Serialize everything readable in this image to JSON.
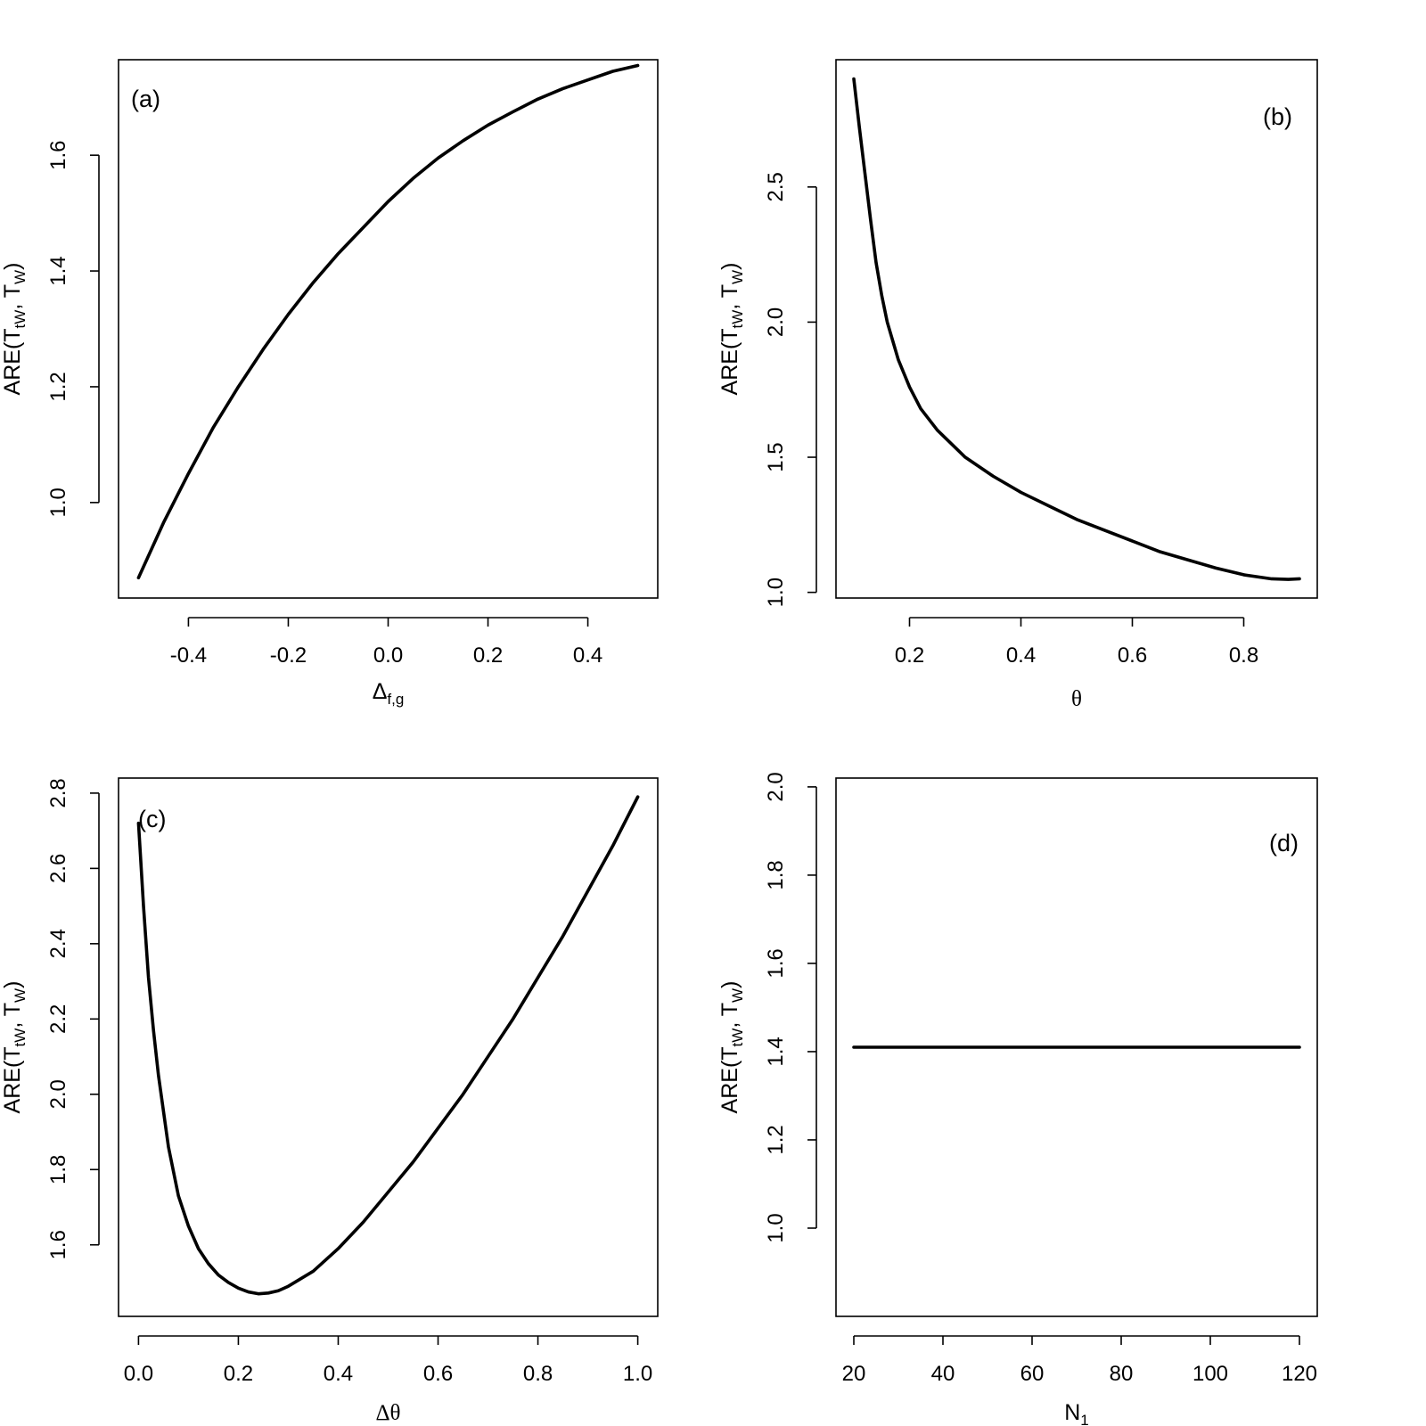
{
  "chart_data": [
    {
      "type": "line",
      "panel_label": "(a)",
      "xlabel": "Δ",
      "xlabel_sub": "f,g",
      "ylabel_parts": [
        "ARE(T",
        "tW",
        ", T",
        "W",
        ")"
      ],
      "xlim": [
        -0.54,
        0.54
      ],
      "ylim": [
        0.835,
        1.765
      ],
      "xticks": [
        -0.4,
        -0.2,
        0.0,
        0.2,
        0.4
      ],
      "xtick_labels": [
        "-0.4",
        "-0.2",
        "0.0",
        "0.2",
        "0.4"
      ],
      "yticks": [
        1.0,
        1.2,
        1.4,
        1.6
      ],
      "ytick_labels": [
        "1.0",
        "1.2",
        "1.4",
        "1.6"
      ],
      "grid": false,
      "series": [
        {
          "x": [
            -0.5,
            -0.45,
            -0.4,
            -0.35,
            -0.3,
            -0.25,
            -0.2,
            -0.15,
            -0.1,
            -0.05,
            0.0,
            0.05,
            0.1,
            0.15,
            0.2,
            0.25,
            0.3,
            0.35,
            0.4,
            0.45,
            0.5
          ],
          "y": [
            0.87,
            0.965,
            1.05,
            1.13,
            1.2,
            1.265,
            1.325,
            1.38,
            1.43,
            1.475,
            1.52,
            1.56,
            1.595,
            1.625,
            1.652,
            1.675,
            1.697,
            1.715,
            1.73,
            1.745,
            1.755
          ]
        }
      ]
    },
    {
      "type": "line",
      "panel_label": "(b)",
      "xlabel": "θ",
      "ylabel_parts": [
        "ARE(T",
        "tW",
        ", T",
        "W",
        ")"
      ],
      "xlim": [
        0.068,
        0.932
      ],
      "ylim": [
        0.979,
        2.971
      ],
      "xticks": [
        0.2,
        0.4,
        0.6,
        0.8
      ],
      "xtick_labels": [
        "0.2",
        "0.4",
        "0.6",
        "0.8"
      ],
      "yticks": [
        1.0,
        1.5,
        2.0,
        2.5
      ],
      "ytick_labels": [
        "1.0",
        "1.5",
        "2.0",
        "2.5"
      ],
      "grid": false,
      "series": [
        {
          "x": [
            0.1,
            0.11,
            0.12,
            0.13,
            0.14,
            0.15,
            0.16,
            0.18,
            0.2,
            0.22,
            0.25,
            0.3,
            0.35,
            0.4,
            0.45,
            0.5,
            0.55,
            0.6,
            0.65,
            0.7,
            0.75,
            0.8,
            0.85,
            0.88,
            0.9
          ],
          "y": [
            2.9,
            2.72,
            2.55,
            2.38,
            2.22,
            2.1,
            2.0,
            1.86,
            1.76,
            1.68,
            1.6,
            1.5,
            1.43,
            1.37,
            1.32,
            1.27,
            1.23,
            1.19,
            1.15,
            1.12,
            1.09,
            1.065,
            1.05,
            1.048,
            1.05
          ]
        }
      ]
    },
    {
      "type": "line",
      "panel_label": "(c)",
      "xlabel": "Δθ",
      "ylabel_parts": [
        "ARE(T",
        "tW",
        ", T",
        "W",
        ")"
      ],
      "xlim": [
        -0.04,
        1.04
      ],
      "ylim": [
        1.41,
        2.84
      ],
      "xticks": [
        0.0,
        0.2,
        0.4,
        0.6,
        0.8,
        1.0
      ],
      "xtick_labels": [
        "0.0",
        "0.2",
        "0.4",
        "0.6",
        "0.8",
        "1.0"
      ],
      "yticks": [
        1.6,
        1.8,
        2.0,
        2.2,
        2.4,
        2.6,
        2.8
      ],
      "ytick_labels": [
        "1.6",
        "1.8",
        "2.0",
        "2.2",
        "2.4",
        "2.6",
        "2.8"
      ],
      "grid": false,
      "series": [
        {
          "x": [
            0.0,
            0.01,
            0.02,
            0.03,
            0.04,
            0.06,
            0.08,
            0.1,
            0.12,
            0.14,
            0.16,
            0.18,
            0.2,
            0.22,
            0.24,
            0.26,
            0.28,
            0.3,
            0.35,
            0.4,
            0.45,
            0.5,
            0.55,
            0.6,
            0.65,
            0.7,
            0.75,
            0.8,
            0.85,
            0.9,
            0.95,
            1.0
          ],
          "y": [
            2.72,
            2.5,
            2.31,
            2.17,
            2.05,
            1.86,
            1.73,
            1.65,
            1.59,
            1.55,
            1.52,
            1.5,
            1.485,
            1.475,
            1.47,
            1.472,
            1.478,
            1.49,
            1.53,
            1.59,
            1.66,
            1.74,
            1.82,
            1.91,
            2.0,
            2.1,
            2.2,
            2.31,
            2.42,
            2.54,
            2.66,
            2.79
          ]
        }
      ]
    },
    {
      "type": "line",
      "panel_label": "(d)",
      "xlabel": "N",
      "xlabel_sub": "1",
      "ylabel_parts": [
        "ARE(T",
        "tW",
        ", T",
        "W",
        ")"
      ],
      "xlim": [
        16,
        124
      ],
      "ylim": [
        0.8,
        2.02
      ],
      "xticks": [
        20,
        40,
        60,
        80,
        100,
        120
      ],
      "xtick_labels": [
        "20",
        "40",
        "60",
        "80",
        "100",
        "120"
      ],
      "yticks": [
        1.0,
        1.2,
        1.4,
        1.6,
        1.8,
        2.0
      ],
      "ytick_labels": [
        "1.0",
        "1.2",
        "1.4",
        "1.6",
        "1.8",
        "2.0"
      ],
      "grid": false,
      "series": [
        {
          "x": [
            20,
            120
          ],
          "y": [
            1.41,
            1.41
          ]
        }
      ]
    }
  ]
}
